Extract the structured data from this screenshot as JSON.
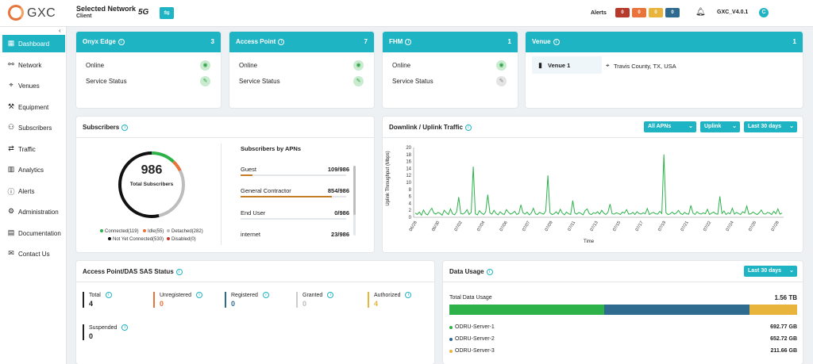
{
  "app": {
    "logo_text": "GXC",
    "version": "GXC_V4.0.1",
    "user_initial": "C"
  },
  "network": {
    "title": "Selected Network",
    "subtitle": "Client",
    "badge": "5G",
    "switch_icon": "swap-icon"
  },
  "alerts": {
    "label": "Alerts",
    "chips": [
      {
        "value": "0",
        "color": "#b53a2c"
      },
      {
        "value": "0",
        "color": "#e8743b"
      },
      {
        "value": "0",
        "color": "#e8b43b"
      },
      {
        "value": "0",
        "color": "#2f6a8f"
      }
    ]
  },
  "sidebar": {
    "items": [
      {
        "label": "Dashboard",
        "icon": "▦",
        "active": true
      },
      {
        "label": "Network",
        "icon": "⚯"
      },
      {
        "label": "Venues",
        "icon": "⌖"
      },
      {
        "label": "Equipment",
        "icon": "⚒"
      },
      {
        "label": "Subscribers",
        "icon": "⚇"
      },
      {
        "label": "Traffic",
        "icon": "⇄"
      },
      {
        "label": "Analytics",
        "icon": "▥"
      },
      {
        "label": "Alerts",
        "icon": "ⓘ"
      },
      {
        "label": "Administration",
        "icon": "⚙"
      },
      {
        "label": "Documentation",
        "icon": "▤"
      },
      {
        "label": "Contact Us",
        "icon": "✉"
      }
    ]
  },
  "status_cards": [
    {
      "title": "Onyx Edge",
      "count": "3",
      "rows": [
        {
          "label": "Online",
          "icon": "wifi-icon"
        },
        {
          "label": "Service Status",
          "icon": "wrench-icon"
        }
      ]
    },
    {
      "title": "Access Point",
      "count": "7",
      "rows": [
        {
          "label": "Online",
          "icon": "wifi-icon"
        },
        {
          "label": "Service Status",
          "icon": "wrench-icon"
        }
      ]
    },
    {
      "title": "FHM",
      "count": "1",
      "rows": [
        {
          "label": "Online",
          "icon": "wifi-icon"
        },
        {
          "label": "Service Status",
          "icon": "wrench-icon"
        }
      ]
    }
  ],
  "venue_card": {
    "title": "Venue",
    "count": "1",
    "venue_name": "Venue 1",
    "location": "Travis County, TX, USA"
  },
  "subscribers": {
    "title": "Subscribers",
    "total": "986",
    "total_label": "Total Subscribers",
    "legend": [
      {
        "label": "Connected(119)",
        "color": "#2db24a"
      },
      {
        "label": "Idle(55)",
        "color": "#e8743b"
      },
      {
        "label": "Detached(282)",
        "color": "#bdbdbd"
      },
      {
        "label": "Not Yet Connected(530)",
        "color": "#111111"
      },
      {
        "label": "Disabled(0)",
        "color": "#c0392b"
      }
    ],
    "donut": [
      {
        "name": "Connected",
        "value": 119,
        "color": "#2db24a"
      },
      {
        "name": "Idle",
        "value": 55,
        "color": "#e8743b"
      },
      {
        "name": "Detached",
        "value": 282,
        "color": "#bdbdbd"
      },
      {
        "name": "Not Yet Connected",
        "value": 530,
        "color": "#111111"
      }
    ],
    "apn_title": "Subscribers by APNs",
    "apns": [
      {
        "name": "Guest",
        "value": "109/986",
        "fraction": 0.11
      },
      {
        "name": "General Contractor",
        "value": "854/986",
        "fraction": 0.866
      },
      {
        "name": "End User",
        "value": "0/986",
        "fraction": 0
      },
      {
        "name": "internet",
        "value": "23/986",
        "fraction": 0.023
      }
    ]
  },
  "traffic": {
    "title": "Downlink / Uplink Traffic",
    "filters": [
      "All APNs",
      "Uplink",
      "Last 30 days"
    ]
  },
  "chart_data": {
    "type": "line",
    "title": "",
    "xlabel": "Time",
    "ylabel": "Uplink Throughput (Mbps)",
    "ylim": [
      0,
      20
    ],
    "yticks": [
      0,
      2,
      4,
      6,
      8,
      10,
      12,
      14,
      16,
      18,
      20
    ],
    "xticks": [
      "06/28",
      "06/30",
      "07/02",
      "07/04",
      "07/06",
      "07/07",
      "07/09",
      "07/11",
      "07/13",
      "07/15",
      "07/17",
      "07/19",
      "07/21",
      "07/22",
      "07/24",
      "07/26",
      "07/28"
    ],
    "series": [
      {
        "color": "#2db24a",
        "values": [
          1.2,
          0.8,
          1.5,
          0.6,
          2.1,
          1.0,
          0.7,
          1.8,
          2.6,
          1.2,
          0.9,
          1.4,
          1.1,
          0.6,
          2.0,
          1.3,
          0.8,
          2.4,
          1.0,
          0.7,
          1.6,
          5.8,
          1.1,
          0.9,
          1.3,
          2.2,
          0.8,
          1.4,
          14.5,
          1.0,
          0.7,
          1.9,
          1.2,
          0.8,
          1.5,
          6.5,
          1.3,
          0.9,
          2.0,
          1.1,
          0.7,
          1.6,
          1.0,
          0.8,
          2.2,
          1.4,
          0.9,
          1.2,
          1.7,
          0.8,
          1.1,
          3.6,
          1.3,
          0.9,
          1.5,
          0.7,
          1.2,
          2.6,
          1.0,
          0.8,
          1.4,
          1.1,
          0.9,
          1.8,
          12.0,
          1.3,
          0.8,
          1.0,
          1.6,
          0.9,
          2.3,
          1.2,
          0.7,
          1.5,
          1.0,
          0.8,
          4.8,
          1.2,
          0.9,
          1.4,
          1.1,
          0.7,
          1.9,
          2.4,
          1.0,
          0.8,
          1.3,
          1.1,
          1.6,
          0.9,
          2.0,
          1.2,
          0.8,
          1.4,
          3.8,
          1.0,
          0.9,
          1.3,
          1.1,
          0.8,
          1.5,
          1.2,
          2.2,
          0.9,
          1.0,
          1.4,
          0.8,
          1.6,
          1.1,
          0.9,
          1.3,
          1.0,
          2.5,
          0.8,
          1.2,
          1.4,
          1.0,
          0.9,
          1.7,
          1.1,
          18.0,
          1.3,
          0.8,
          1.0,
          1.5,
          0.9,
          1.2,
          2.0,
          1.1,
          0.8,
          1.4,
          1.0,
          0.9,
          3.4,
          1.2,
          0.8,
          1.6,
          1.1,
          0.9,
          1.3,
          1.0,
          2.3,
          0.8,
          1.2,
          1.5,
          1.0,
          0.9,
          6.0,
          1.1,
          1.8,
          0.8,
          1.3,
          1.0,
          2.6,
          0.9,
          1.4,
          1.1,
          0.8,
          1.6,
          1.2,
          3.2,
          0.9,
          1.0,
          1.5,
          1.1,
          0.8,
          1.3,
          2.1,
          1.0,
          0.9,
          1.4,
          1.2,
          0.8,
          1.7,
          1.0,
          2.4,
          0.9,
          1.2
        ]
      }
    ]
  },
  "sas": {
    "title": "Access Point/DAS SAS Status",
    "items": [
      {
        "label": "Total",
        "value": "4",
        "color": "#222222",
        "value_color": "#222222"
      },
      {
        "label": "Unregistered",
        "value": "0",
        "color": "#e8743b",
        "value_color": "#e8743b"
      },
      {
        "label": "Registered",
        "value": "0",
        "color": "#2f6a8f",
        "value_color": "#2f6a8f"
      },
      {
        "label": "Granted",
        "value": "0",
        "color": "#cccccc",
        "value_color": "#bbbbbb"
      },
      {
        "label": "Authorized",
        "value": "4",
        "color": "#e8b43b",
        "value_color": "#e8b43b"
      },
      {
        "label": "Suspended",
        "value": "0",
        "color": "#222222",
        "value_color": "#222222"
      }
    ]
  },
  "data_usage": {
    "title": "Data Usage",
    "filter": "Last 30 days",
    "total_label": "Total Data Usage",
    "total_value": "1.56 TB",
    "servers": [
      {
        "name": "ODRU-Server-1",
        "value": "692.77 GB",
        "gb": 692.77,
        "color": "#2db24a"
      },
      {
        "name": "ODRU-Server-2",
        "value": "652.72 GB",
        "gb": 652.72,
        "color": "#2f6a8f"
      },
      {
        "name": "ODRU-Server-3",
        "value": "211.66 GB",
        "gb": 211.66,
        "color": "#e8b43b"
      }
    ]
  }
}
